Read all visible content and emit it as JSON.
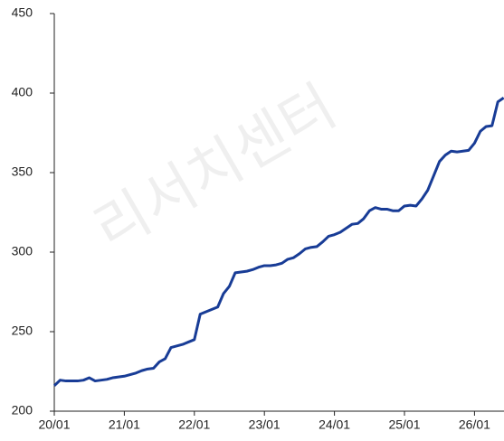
{
  "chart_data": {
    "type": "line",
    "watermark": "리서치센터",
    "categories": [
      "20/01",
      null,
      null,
      null,
      null,
      null,
      null,
      null,
      null,
      null,
      null,
      null,
      "21/01",
      null,
      null,
      null,
      null,
      null,
      null,
      null,
      null,
      null,
      null,
      null,
      "22/01",
      null,
      null,
      null,
      null,
      null,
      null,
      null,
      null,
      null,
      null,
      null,
      "23/01",
      null,
      null,
      null,
      null,
      null,
      null,
      null,
      null,
      null,
      null,
      null,
      "24/01",
      null,
      null,
      null,
      null,
      null,
      null,
      null,
      null,
      null,
      null,
      null,
      "25/01",
      null,
      null,
      null,
      null,
      null,
      null,
      null,
      null,
      null,
      null,
      null,
      "26/01",
      null,
      null,
      null,
      null,
      null
    ],
    "series": [
      {
        "color": "#183c96",
        "values": [
          216,
          219.5,
          219,
          219,
          219,
          219.5,
          221,
          219,
          219.5,
          220,
          221,
          221.5,
          222,
          223,
          224,
          225.5,
          226.5,
          227,
          231,
          233,
          240,
          241,
          242,
          243.5,
          245,
          261,
          262.5,
          264,
          265.5,
          274,
          278.5,
          287,
          287.5,
          288,
          289,
          290.5,
          291.5,
          291.5,
          292,
          293,
          295.5,
          296.5,
          299,
          302,
          303,
          303.5,
          306.5,
          310,
          311,
          312.5,
          315,
          317.5,
          318,
          321,
          326,
          328,
          327,
          327,
          326,
          326,
          329,
          329.5,
          329,
          333.5,
          339,
          348,
          357,
          361,
          363.5,
          363,
          363.5,
          364,
          368.5,
          376,
          379,
          379.5,
          394.5,
          397
        ]
      }
    ],
    "ylim": [
      200,
      450
    ],
    "yticks": [
      200,
      250,
      300,
      350,
      400,
      450
    ],
    "grid": false
  }
}
